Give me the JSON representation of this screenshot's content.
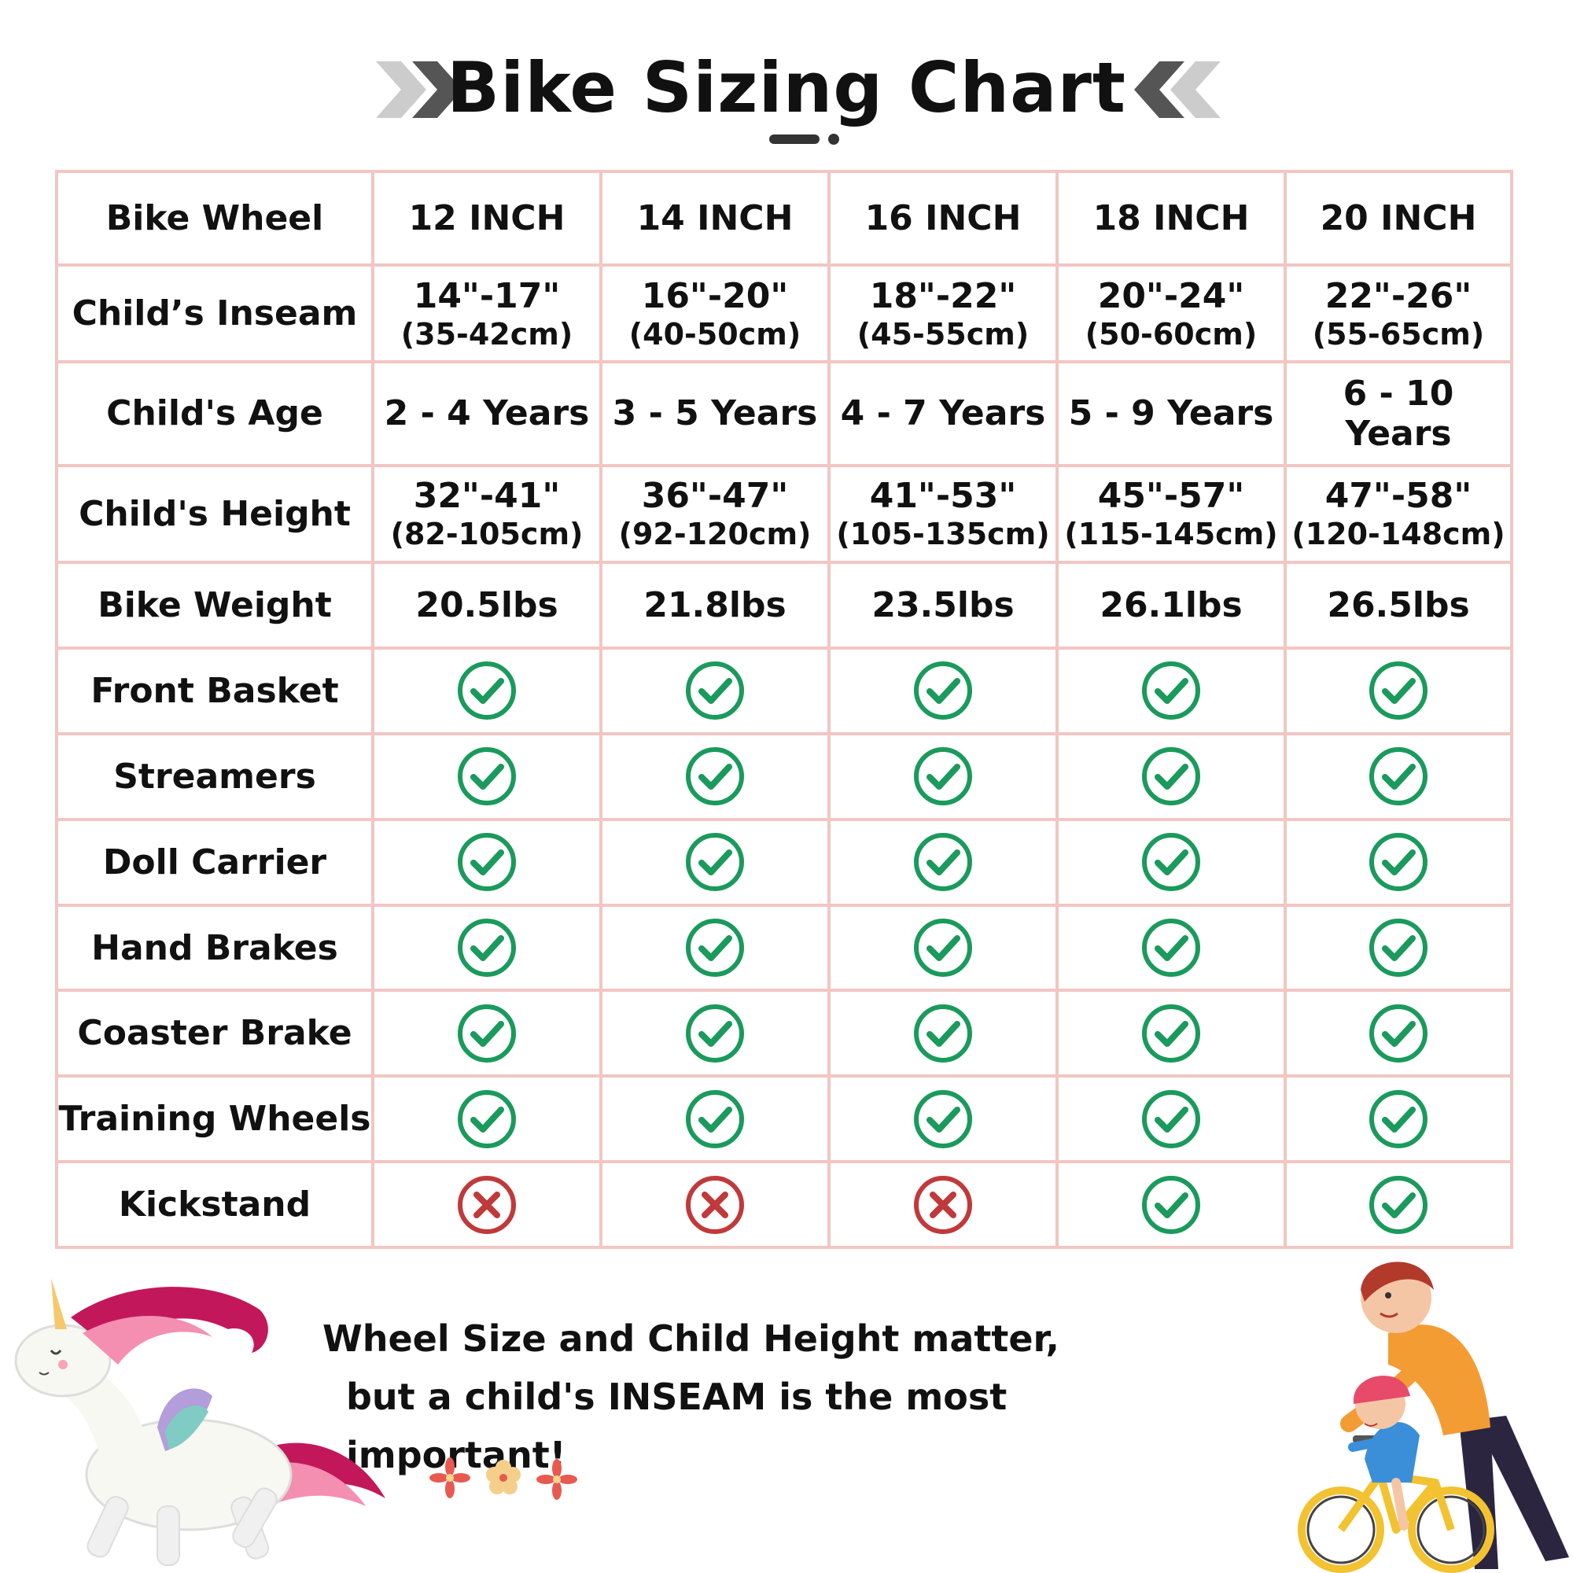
{
  "header": {
    "title": "Bike Sizing Chart",
    "arrow_dark": "#555555",
    "arrow_light": "#cccccc"
  },
  "table": {
    "border_color": "#f2c6c2",
    "check_color": "#1a9a5c",
    "cross_color": "#c0393b",
    "columns": [
      "Bike Wheel",
      "12 INCH",
      "14 INCH",
      "16 INCH",
      "18 INCH",
      "20 INCH"
    ],
    "rows": [
      {
        "label": "Child’s Inseam",
        "cells": [
          {
            "main": "14\"-17\"",
            "sub": "(35-42cm)"
          },
          {
            "main": "16\"-20\"",
            "sub": "(40-50cm)"
          },
          {
            "main": "18\"-22\"",
            "sub": "(45-55cm)"
          },
          {
            "main": "20\"-24\"",
            "sub": "(50-60cm)"
          },
          {
            "main": "22\"-26\"",
            "sub": "(55-65cm)"
          }
        ]
      },
      {
        "label": "Child's Age",
        "cells": [
          "2 - 4 Years",
          "3 - 5 Years",
          "4 - 7 Years",
          "5 - 9 Years",
          "6 - 10 Years"
        ]
      },
      {
        "label": "Child's Height",
        "cells": [
          {
            "main": "32\"-41\"",
            "sub": "(82-105cm)"
          },
          {
            "main": "36\"-47\"",
            "sub": "(92-120cm)"
          },
          {
            "main": "41\"-53\"",
            "sub": "(105-135cm)"
          },
          {
            "main": "45\"-57\"",
            "sub": "(115-145cm)"
          },
          {
            "main": "47\"-58\"",
            "sub": "(120-148cm)"
          }
        ]
      },
      {
        "label": "Bike Weight",
        "cells": [
          "20.5lbs",
          "21.8lbs",
          "23.5lbs",
          "26.1lbs",
          "26.5lbs"
        ]
      }
    ],
    "feature_rows": [
      {
        "label": "Front Basket",
        "values": [
          true,
          true,
          true,
          true,
          true
        ]
      },
      {
        "label": "Streamers",
        "values": [
          true,
          true,
          true,
          true,
          true
        ]
      },
      {
        "label": "Doll Carrier",
        "values": [
          true,
          true,
          true,
          true,
          true
        ]
      },
      {
        "label": "Hand Brakes",
        "values": [
          true,
          true,
          true,
          true,
          true
        ]
      },
      {
        "label": "Coaster Brake",
        "values": [
          true,
          true,
          true,
          true,
          true
        ]
      },
      {
        "label": "Training Wheels",
        "values": [
          true,
          true,
          true,
          true,
          true
        ]
      },
      {
        "label": "Kickstand",
        "values": [
          false,
          false,
          false,
          true,
          true
        ]
      }
    ]
  },
  "note": {
    "line1": "Wheel Size and Child Height matter,",
    "line2": "but a child's INSEAM is the most important!"
  },
  "illustrations": {
    "left": "unicorn-illustration",
    "middle": "flowers-decoration",
    "right": "parent-child-bike-illustration"
  }
}
